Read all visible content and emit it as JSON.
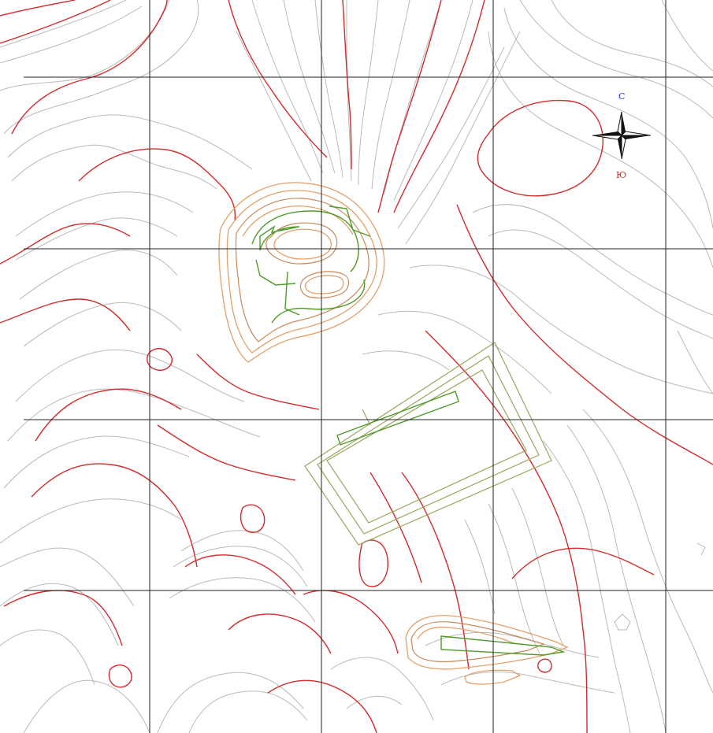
{
  "map": {
    "compass": {
      "north_label": "С",
      "south_label": "Ю"
    },
    "colors": {
      "grid": "#222222",
      "minor_contour": "#b9b9b9",
      "major_contour": "#d32a2a",
      "pit_contour": "#e3a06a",
      "design_green": "#4f9a2a",
      "design_olive": "#9aa55a",
      "north_label": "#2a3ad0",
      "south_label": "#d32a2a"
    },
    "icons": [
      "compass-rose-icon"
    ]
  }
}
